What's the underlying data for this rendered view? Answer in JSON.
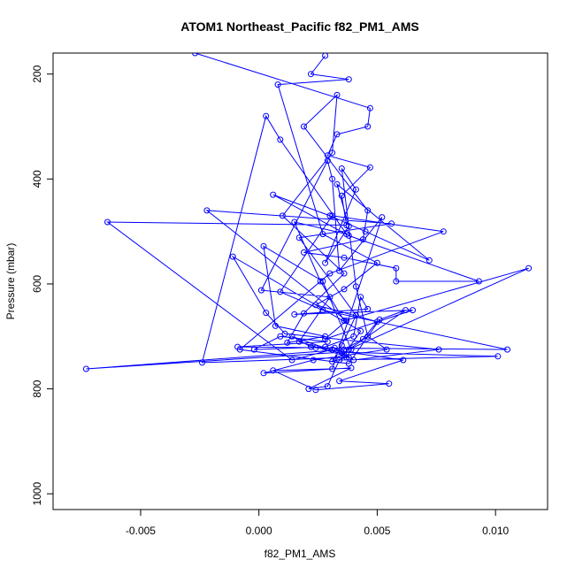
{
  "chart_data": {
    "type": "line",
    "title": "ATOM1 Northeast_Pacific f82_PM1_AMS",
    "xlabel": "f82_PM1_AMS",
    "ylabel": "Pressure (mbar)",
    "xlim": [
      -0.0087,
      0.0122
    ],
    "ylim": [
      1030,
      160
    ],
    "y_reversed": true,
    "grid": false,
    "legend": "none",
    "markers": "open-circle",
    "x_ticks": [
      -0.005,
      0.0,
      0.005,
      0.01
    ],
    "x_tick_labels": [
      "-0.005",
      "0.000",
      "0.005",
      "0.010"
    ],
    "y_ticks": [
      200,
      400,
      600,
      800,
      1000
    ],
    "y_tick_labels": [
      "200",
      "400",
      "600",
      "800",
      "1000"
    ],
    "series": [
      {
        "color": "#0000ff",
        "points": [
          [
            -0.0027,
            160
          ],
          [
            0.0047,
            265
          ],
          [
            0.0046,
            300
          ],
          [
            0.0033,
            315
          ],
          [
            0.0029,
            355
          ],
          [
            0.0047,
            378
          ],
          [
            0.0035,
            432
          ],
          [
            0.0037,
            488
          ],
          [
            -0.0064,
            482
          ],
          [
            0.0014,
            745
          ],
          [
            0.0031,
            725
          ],
          [
            0.0024,
            722
          ],
          [
            0.0105,
            725
          ],
          [
            0.0027,
            650
          ],
          [
            0.0009,
            615
          ],
          [
            0.0031,
            470
          ],
          [
            0.0078,
            500
          ],
          [
            0.003,
            580
          ],
          [
            -0.0008,
            725
          ],
          [
            0.0038,
            752
          ],
          [
            0.0051,
            668
          ],
          [
            0.0062,
            650
          ],
          [
            0.0038,
            725
          ],
          [
            0.0114,
            570
          ],
          [
            0.0036,
            670
          ],
          [
            0.0026,
            595
          ],
          [
            0.0015,
            482
          ],
          [
            0.0037,
            505
          ],
          [
            0.0009,
            325
          ],
          [
            0.0003,
            280
          ],
          [
            -0.0024,
            750
          ],
          [
            0.0038,
            740
          ],
          [
            0.0017,
            710
          ],
          [
            0.003,
            625
          ],
          [
            0.0001,
            612
          ],
          [
            0.0029,
            365
          ],
          [
            0.0031,
            400
          ],
          [
            0.0034,
            575
          ],
          [
            0.0052,
            473
          ],
          [
            0.0031,
            762
          ],
          [
            0.0006,
            765
          ],
          [
            0.0024,
            802
          ],
          [
            0.0055,
            790
          ],
          [
            0.0034,
            785
          ],
          [
            0.0061,
            745
          ],
          [
            0.0022,
            720
          ],
          [
            0.0014,
            700
          ],
          [
            0.0036,
            735
          ],
          [
            0.0043,
            690
          ],
          [
            -0.0011,
            548
          ],
          [
            0.0003,
            655
          ],
          [
            0.0011,
            695
          ],
          [
            0.0076,
            725
          ],
          [
            0.004,
            745
          ],
          [
            0.0032,
            722
          ],
          [
            -0.0009,
            720
          ],
          [
            0.0029,
            710
          ],
          [
            0.0009,
            700
          ],
          [
            -0.0002,
            725
          ],
          [
            0.0028,
            720
          ],
          [
            0.004,
            700
          ],
          [
            0.0043,
            625
          ],
          [
            0.0046,
            648
          ],
          [
            0.0015,
            658
          ],
          [
            0.0065,
            650
          ],
          [
            0.0028,
            705
          ],
          [
            0.0037,
            670
          ],
          [
            -0.0022,
            460
          ],
          [
            0.0056,
            485
          ],
          [
            0.0017,
            512
          ],
          [
            0.0041,
            660
          ],
          [
            0.0035,
            717
          ],
          [
            0.0031,
            748
          ],
          [
            0.0037,
            740
          ],
          [
            0.0039,
            725
          ],
          [
            0.0027,
            595
          ],
          [
            0.0002,
            528
          ],
          [
            0.0007,
            680
          ],
          [
            0.0028,
            700
          ],
          [
            0.0012,
            712
          ],
          [
            0.0019,
            656
          ],
          [
            0.0036,
            580
          ],
          [
            0.001,
            470
          ],
          [
            0.0031,
            350
          ],
          [
            0.0033,
            240
          ],
          [
            0.0019,
            300
          ],
          [
            0.0046,
            460
          ],
          [
            0.0044,
            515
          ],
          [
            0.0019,
            540
          ],
          [
            0.0036,
            550
          ],
          [
            0.0058,
            570
          ],
          [
            0.0058,
            595
          ],
          [
            0.0093,
            595
          ],
          [
            0.0038,
            508
          ],
          [
            0.0006,
            430
          ],
          [
            0.003,
            470
          ],
          [
            0.0045,
            500
          ],
          [
            0.0072,
            555
          ],
          [
            0.0033,
            410
          ],
          [
            0.0038,
            490
          ],
          [
            0.0028,
            560
          ],
          [
            0.0041,
            420
          ],
          [
            0.0035,
            380
          ],
          [
            0.0041,
            605
          ],
          [
            0.0046,
            700
          ],
          [
            0.0054,
            725
          ],
          [
            0.0023,
            745
          ],
          [
            0.0002,
            770
          ],
          [
            0.0039,
            760
          ],
          [
            0.0021,
            800
          ],
          [
            0.0029,
            795
          ],
          [
            0.0034,
            745
          ],
          [
            0.0101,
            738
          ],
          [
            0.0035,
            730
          ],
          [
            -0.0073,
            762
          ],
          [
            0.0036,
            725
          ],
          [
            0.0044,
            705
          ],
          [
            0.005,
            672
          ],
          [
            0.0024,
            640
          ],
          [
            0.0036,
            610
          ],
          [
            0.005,
            560
          ],
          [
            0.0027,
            505
          ],
          [
            0.0008,
            220
          ],
          [
            0.0038,
            210
          ],
          [
            0.0022,
            200
          ],
          [
            0.0028,
            165
          ]
        ]
      }
    ]
  }
}
